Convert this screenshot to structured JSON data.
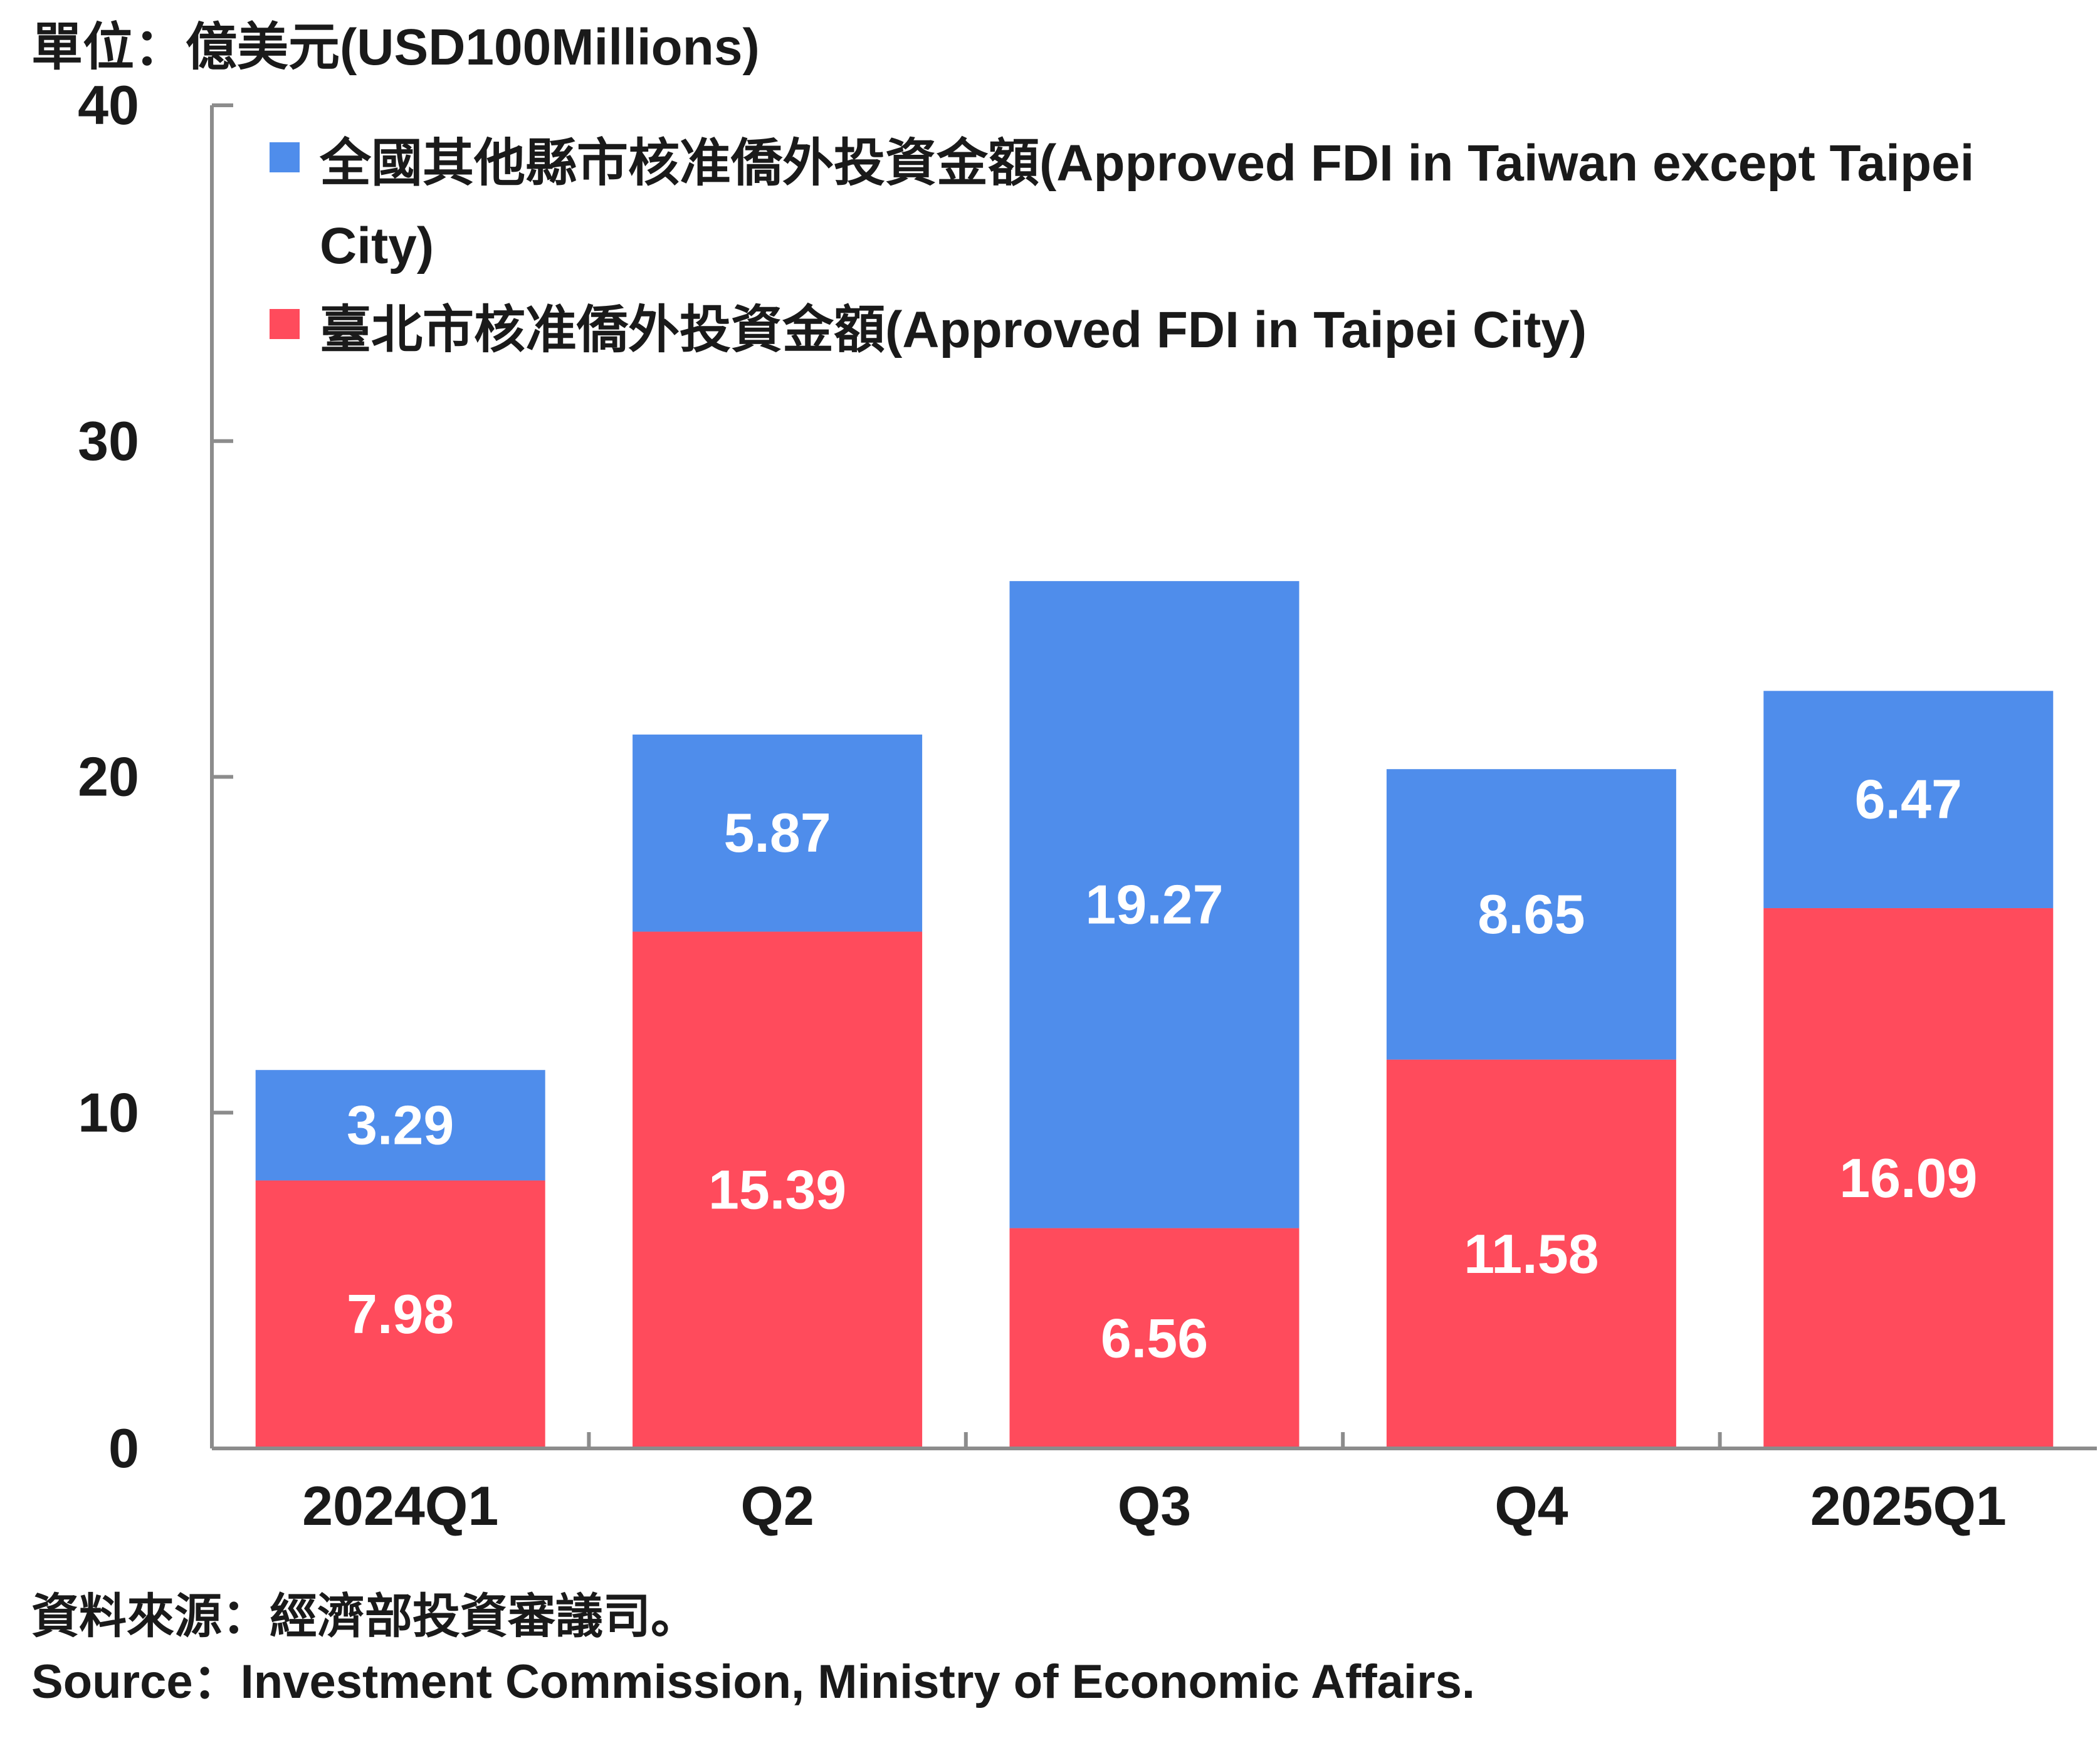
{
  "unit_label": "單位：億美元(USD100Millions)",
  "chart_data": {
    "type": "bar",
    "stacked": true,
    "categories": [
      "2024Q1",
      "Q2",
      "Q3",
      "Q4",
      "2025Q1"
    ],
    "series": [
      {
        "name": "臺北市核准僑外投資金額(Approved FDI in Taipei City)",
        "color": "#ff4b5c",
        "values": [
          7.98,
          15.39,
          6.56,
          11.58,
          16.09
        ]
      },
      {
        "name": "全國其他縣市核准僑外投資金額(Approved FDI in Taiwan except Taipei City)",
        "color": "#4f8deb",
        "values": [
          3.29,
          5.87,
          19.27,
          8.65,
          6.47
        ]
      }
    ],
    "data_labels": [
      [
        "7.98",
        "15.39",
        "6.56",
        "11.58",
        "16.09"
      ],
      [
        "3.29",
        "5.87",
        "19.27",
        "8.65",
        "6.47"
      ]
    ],
    "ylim": [
      0,
      40
    ],
    "yticks": [
      "0",
      "10",
      "20",
      "30",
      "40"
    ],
    "legend_position": "top-left",
    "grid": false
  },
  "legend": {
    "items": [
      {
        "label": "全國其他縣市核准僑外投資金額(Approved FDI in Taiwan except Taipei City)",
        "color": "#4f8deb"
      },
      {
        "label": "臺北市核准僑外投資金額(Approved FDI in Taipei City)",
        "color": "#ff4b5c"
      }
    ]
  },
  "source": {
    "zh": "資料來源：經濟部投資審議司。",
    "en": "Source：Investment Commission, Ministry of Economic Affairs."
  }
}
